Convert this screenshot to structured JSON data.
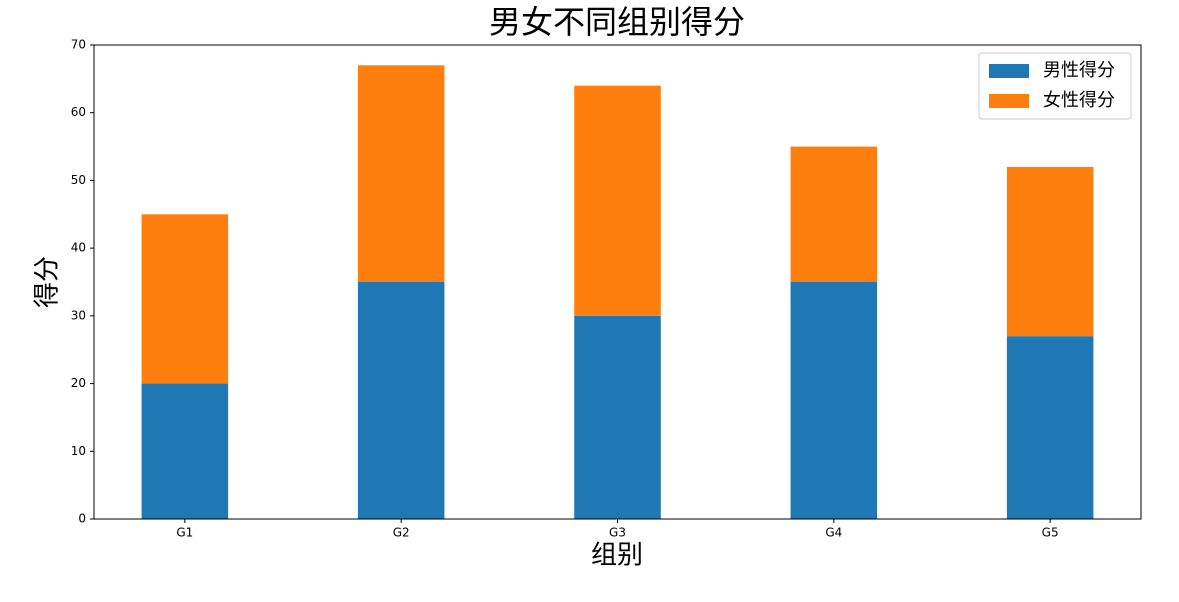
{
  "chart_data": {
    "type": "stacked_bar",
    "title": "男女不同组别得分",
    "x_label": "组别",
    "y_label": "得分",
    "categories": [
      "G1",
      "G2",
      "G3",
      "G4",
      "G5"
    ],
    "series": [
      {
        "name": "男性得分",
        "color": "#1f77b4",
        "values": [
          20,
          35,
          30,
          35,
          27
        ]
      },
      {
        "name": "女性得分",
        "color": "#ff7f0e",
        "values": [
          25,
          32,
          34,
          20,
          25
        ]
      }
    ],
    "ylim": [
      0,
      70
    ],
    "yticks": [
      0,
      10,
      20,
      30,
      40,
      50,
      60,
      70
    ],
    "legend": "upper right"
  }
}
